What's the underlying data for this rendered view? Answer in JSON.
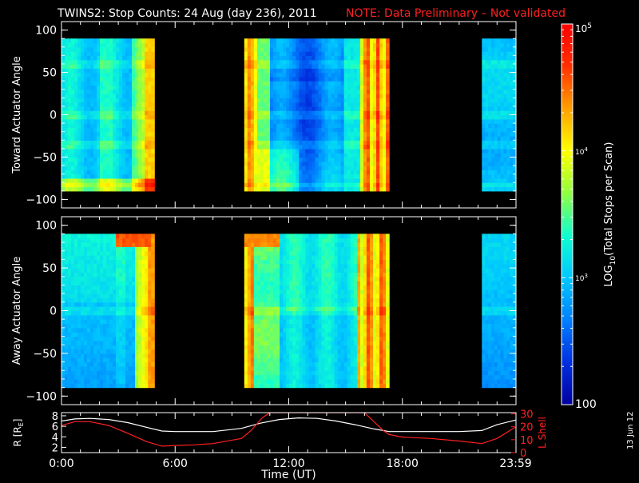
{
  "title": {
    "main": "TWINS2: Stop Counts: 24 Aug (day 236), 2011",
    "note": "NOTE: Data Preliminary – Not validated",
    "note_color": "#ff2020"
  },
  "side_date": "13 Jun 12",
  "colorbar": {
    "label_prefix": "LOG",
    "label_sub": "10",
    "label_suffix": "(Total Stops per Scan)",
    "scale": "log",
    "range": [
      100,
      100000
    ],
    "tick_labels": {
      "t1e5_base": "10",
      "t1e5_exp": "5",
      "t1e4_base": "10",
      "t1e4_exp": "4",
      "t1e3_base": "10",
      "t1e3_exp": "3",
      "t100": "100"
    },
    "colormap": [
      "#0000a0",
      "#0030e0",
      "#0080ff",
      "#00c8ff",
      "#10ffd0",
      "#90ff40",
      "#ffff00",
      "#ffa000",
      "#ff3000",
      "#ff0000"
    ]
  },
  "chart_data": [
    {
      "type": "heatmap",
      "name": "toward",
      "ylabel": "Toward Actuator Angle",
      "ylim": [
        -110,
        110
      ],
      "y_ticks": [
        "100",
        "50",
        "0",
        "−50",
        "−100"
      ],
      "y_tick_values": [
        100,
        50,
        0,
        -50,
        -100
      ],
      "x_ticks": [
        "0:00",
        "6:00",
        "12:00",
        "18:00",
        "23:59"
      ],
      "x_tick_hours": [
        0,
        6,
        12,
        18,
        23.98
      ],
      "xlim_hours": [
        0,
        24
      ],
      "data_extent_deg": [
        -90,
        90
      ],
      "data_intervals_hours": [
        [
          0,
          4.9
        ],
        [
          9.65,
          17.3
        ],
        [
          22.2,
          24
        ]
      ],
      "dense_rows_deg": [
        60,
        0,
        -35,
        -82
      ],
      "grid": false
    },
    {
      "type": "heatmap",
      "name": "away",
      "ylabel": "Away Actuator Angle",
      "ylim": [
        -110,
        110
      ],
      "y_ticks": [
        "100",
        "50",
        "0",
        "−50",
        "−100"
      ],
      "y_tick_values": [
        100,
        50,
        0,
        -50,
        -100
      ],
      "x_ticks": [
        "0:00",
        "6:00",
        "12:00",
        "18:00",
        "23:59"
      ],
      "x_tick_hours": [
        0,
        6,
        12,
        18,
        23.98
      ],
      "xlim_hours": [
        0,
        24
      ],
      "data_extent_deg": [
        -90,
        90
      ],
      "data_intervals_hours": [
        [
          0,
          4.9
        ],
        [
          9.65,
          17.3
        ],
        [
          22.2,
          24
        ]
      ],
      "dense_rows_deg": [
        0
      ],
      "grid": false
    },
    {
      "type": "line",
      "name": "orbit",
      "xlabel": "Time (UT)",
      "x_ticks": [
        "0:00",
        "6:00",
        "12:00",
        "18:00",
        "23:59"
      ],
      "x_tick_hours": [
        0,
        6,
        12,
        18,
        23.98
      ],
      "xlim_hours": [
        0,
        24
      ],
      "left_axis": {
        "label_base": "R [R",
        "label_sub": "E",
        "label_end": "]",
        "ylim": [
          1,
          8.6
        ],
        "y_ticks": [
          "8",
          "6",
          "4",
          "2"
        ],
        "y_tick_values": [
          8,
          6,
          4,
          2
        ]
      },
      "right_axis": {
        "label": "L Shell",
        "color": "#ff2020",
        "ylim": [
          0,
          31
        ],
        "y_ticks": [
          "30",
          "20",
          "10",
          "0"
        ],
        "y_tick_values": [
          30,
          20,
          10,
          0
        ]
      },
      "series": [
        {
          "name": "R",
          "axis": "left",
          "color": "#ffffff",
          "x": [
            0,
            0.7,
            1.5,
            2.5,
            3.5,
            4.5,
            5.3,
            6,
            7,
            8,
            9.5,
            10.5,
            11.5,
            12.5,
            13.5,
            14.5,
            15.5,
            16.5,
            17.3,
            18,
            19.5,
            21,
            22.2,
            23,
            24
          ],
          "y": [
            7.0,
            7.4,
            7.5,
            7.3,
            6.7,
            5.8,
            5.1,
            5.0,
            5.0,
            5.0,
            5.6,
            6.6,
            7.3,
            7.6,
            7.5,
            7.0,
            6.3,
            5.5,
            5.0,
            5.0,
            5.0,
            5.0,
            5.2,
            6.3,
            7.2
          ]
        },
        {
          "name": "L Shell",
          "axis": "right",
          "color": "#ff2020",
          "x": [
            0,
            0.7,
            1.5,
            2.5,
            3.5,
            4.5,
            5.3,
            6,
            7,
            8,
            9.5,
            10.0,
            10.6,
            11.0,
            16.0,
            16.5,
            17.0,
            17.3,
            18,
            19.5,
            21,
            22.2,
            23,
            24
          ],
          "y": [
            21.0,
            24.0,
            24.0,
            21.0,
            15.0,
            8.5,
            5.0,
            5.5,
            6.0,
            7.0,
            11.0,
            17.0,
            27.0,
            31.0,
            31.0,
            24.0,
            17.0,
            14.0,
            12.0,
            11.0,
            9.0,
            7.0,
            11.0,
            20.0
          ]
        }
      ]
    }
  ]
}
